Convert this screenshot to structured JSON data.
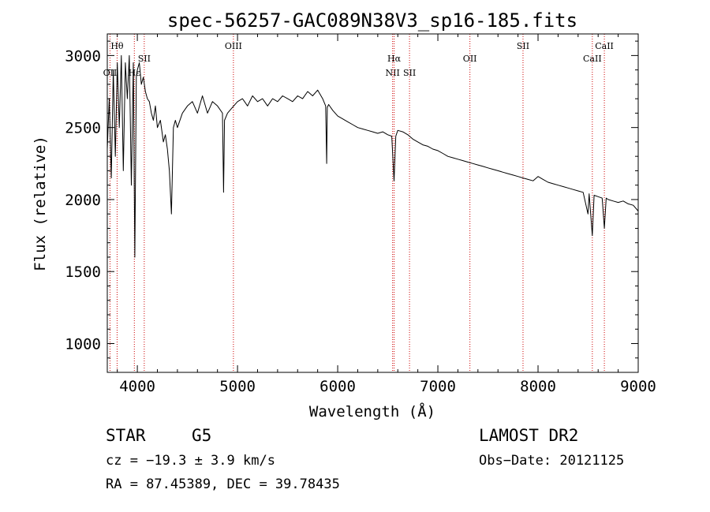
{
  "chart_data": {
    "type": "line",
    "title": "spec-56257-GAC089N38V3_sp16-185.fits",
    "xlabel": "Wavelength (Å)",
    "ylabel": "Flux (relative)",
    "xlim": [
      3700,
      9000
    ],
    "ylim": [
      800,
      3150
    ],
    "xticks": [
      4000,
      5000,
      6000,
      7000,
      8000,
      9000
    ],
    "yticks": [
      1000,
      1500,
      2000,
      2500,
      3000
    ],
    "grid": false,
    "series": [
      {
        "x": [
          3700,
          3720,
          3740,
          3760,
          3780,
          3800,
          3820,
          3840,
          3860,
          3880,
          3900,
          3920,
          3940,
          3960,
          3975,
          3990,
          4000,
          4020,
          4040,
          4060,
          4080,
          4100,
          4120,
          4140,
          4160,
          4180,
          4200,
          4230,
          4260,
          4280,
          4300,
          4320,
          4340,
          4360,
          4380,
          4400,
          4450,
          4500,
          4550,
          4600,
          4650,
          4700,
          4750,
          4800,
          4850,
          4861,
          4870,
          4900,
          4950,
          5000,
          5050,
          5100,
          5150,
          5200,
          5250,
          5300,
          5350,
          5400,
          5450,
          5500,
          5550,
          5600,
          5650,
          5700,
          5750,
          5800,
          5850,
          5880,
          5890,
          5896,
          5910,
          5950,
          6000,
          6050,
          6100,
          6150,
          6200,
          6250,
          6300,
          6350,
          6400,
          6450,
          6500,
          6540,
          6563,
          6580,
          6600,
          6650,
          6700,
          6750,
          6800,
          6850,
          6900,
          6950,
          7000,
          7050,
          7100,
          7150,
          7200,
          7250,
          7300,
          7350,
          7400,
          7450,
          7500,
          7550,
          7600,
          7650,
          7700,
          7750,
          7800,
          7850,
          7900,
          7950,
          8000,
          8050,
          8100,
          8150,
          8200,
          8250,
          8300,
          8350,
          8400,
          8450,
          8498,
          8510,
          8542,
          8560,
          8600,
          8640,
          8662,
          8680,
          8700,
          8750,
          8800,
          8850,
          8900,
          8950,
          9000
        ],
        "y": [
          2350,
          2700,
          2150,
          2900,
          2300,
          2950,
          2500,
          3000,
          2200,
          2950,
          2700,
          3000,
          2100,
          2950,
          1600,
          2850,
          2900,
          2950,
          2800,
          2850,
          2750,
          2700,
          2680,
          2600,
          2550,
          2650,
          2500,
          2550,
          2400,
          2450,
          2350,
          2200,
          1900,
          2500,
          2550,
          2500,
          2600,
          2650,
          2680,
          2600,
          2720,
          2600,
          2680,
          2650,
          2600,
          2050,
          2550,
          2600,
          2640,
          2680,
          2700,
          2650,
          2720,
          2680,
          2700,
          2650,
          2700,
          2680,
          2720,
          2700,
          2680,
          2720,
          2700,
          2750,
          2720,
          2760,
          2700,
          2650,
          2250,
          2640,
          2660,
          2620,
          2580,
          2560,
          2540,
          2520,
          2500,
          2490,
          2480,
          2470,
          2460,
          2470,
          2450,
          2440,
          2130,
          2440,
          2480,
          2470,
          2450,
          2420,
          2400,
          2380,
          2370,
          2350,
          2340,
          2320,
          2300,
          2290,
          2280,
          2270,
          2260,
          2250,
          2240,
          2230,
          2220,
          2210,
          2200,
          2190,
          2180,
          2170,
          2160,
          2150,
          2140,
          2130,
          2160,
          2140,
          2120,
          2110,
          2100,
          2090,
          2080,
          2070,
          2060,
          2050,
          1900,
          2040,
          1750,
          2030,
          2020,
          2010,
          1800,
          2010,
          2000,
          1990,
          1980,
          1990,
          1970,
          1960,
          1920
        ]
      }
    ],
    "lines": [
      {
        "wavelength": 3727,
        "label": "OII",
        "row": "low"
      },
      {
        "wavelength": 3798,
        "label": "Hθ",
        "row": "top"
      },
      {
        "wavelength": 3970,
        "label": "Hε",
        "row": "low"
      },
      {
        "wavelength": 4069,
        "label": "SII",
        "row": "mid"
      },
      {
        "wavelength": 4959,
        "label": "OIII",
        "row": "top"
      },
      {
        "wavelength": 6548,
        "label": "NII",
        "row": "low"
      },
      {
        "wavelength": 6563,
        "label": "Hα",
        "row": "mid"
      },
      {
        "wavelength": 6717,
        "label": "SII",
        "row": "low"
      },
      {
        "wavelength": 7320,
        "label": "OII",
        "row": "mid"
      },
      {
        "wavelength": 7850,
        "label": "SII",
        "row": "top"
      },
      {
        "wavelength": 8542,
        "label": "CaII",
        "row": "mid"
      },
      {
        "wavelength": 8662,
        "label": "CaII",
        "row": "top"
      }
    ],
    "line_color": "#000000",
    "marker_color": "#cc0000"
  },
  "info": {
    "class": "STAR",
    "subclass": "G5",
    "survey": "LAMOST DR2",
    "cz": "cz = −19.3 ± 3.9 km/s",
    "obs_date": "Obs−Date: 20121125",
    "radec": "RA =  87.45389, DEC =  39.78435"
  }
}
